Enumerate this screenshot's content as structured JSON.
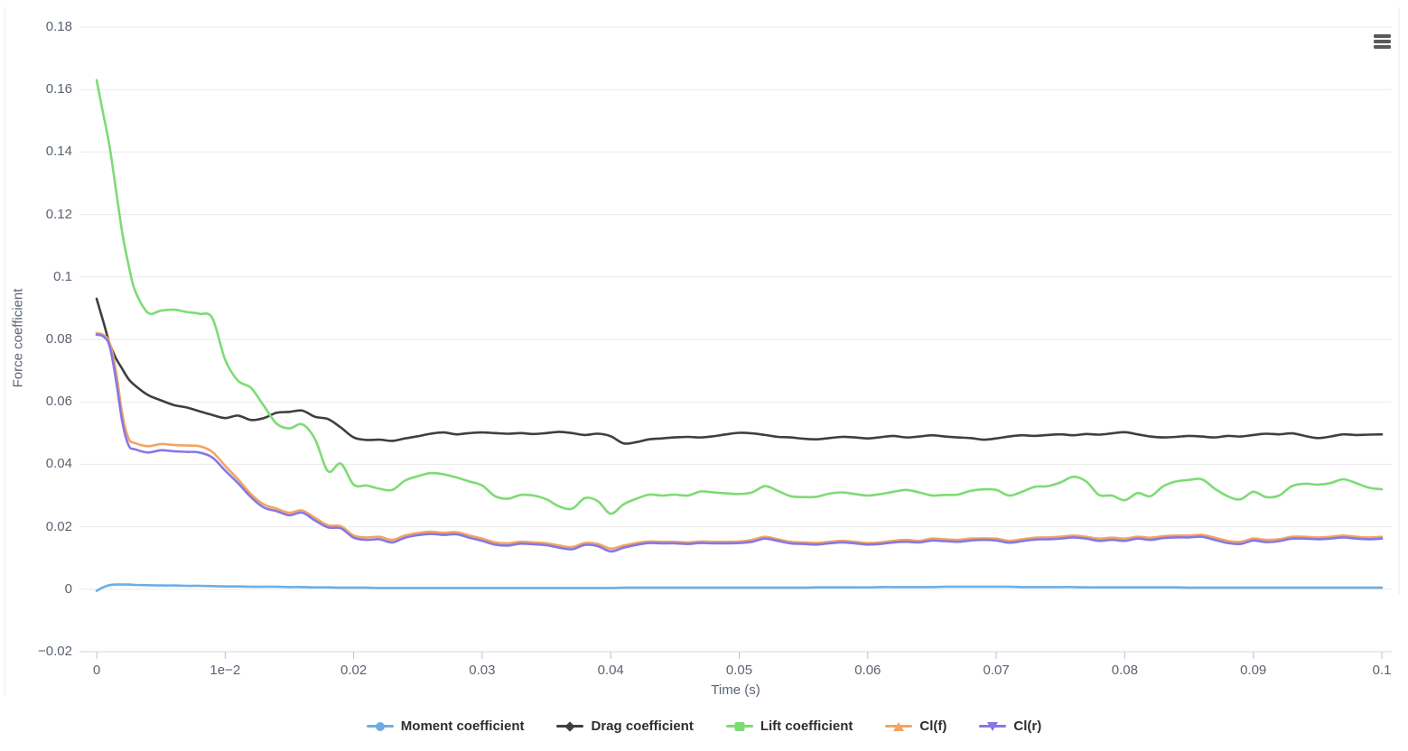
{
  "page": {
    "background": "#ffffff"
  },
  "toolbar": {
    "menu_icon": "hamburger"
  },
  "chart_data": {
    "type": "line",
    "title": "",
    "xlabel": "Time (s)",
    "ylabel": "Force coefficient",
    "xlim": [
      0,
      0.1
    ],
    "ylim": [
      -0.02,
      0.18
    ],
    "grid": true,
    "legend_position": "bottom",
    "colors": {
      "grid": "#eaeaea",
      "axis_line": "#ccd6e4",
      "tick": "#b7c3d6",
      "label_text": "#5a6372",
      "legend_text": "#2e2e2e"
    },
    "x_ticks": [
      {
        "value": 0,
        "label": "0"
      },
      {
        "value": 0.01,
        "label": "1e−2"
      },
      {
        "value": 0.02,
        "label": "0.02"
      },
      {
        "value": 0.03,
        "label": "0.03"
      },
      {
        "value": 0.04,
        "label": "0.04"
      },
      {
        "value": 0.05,
        "label": "0.05"
      },
      {
        "value": 0.06,
        "label": "0.06"
      },
      {
        "value": 0.07,
        "label": "0.07"
      },
      {
        "value": 0.08,
        "label": "0.08"
      },
      {
        "value": 0.09,
        "label": "0.09"
      },
      {
        "value": 0.1,
        "label": "0.1"
      }
    ],
    "y_ticks": [
      {
        "value": 0.18,
        "label": "0.18"
      },
      {
        "value": 0.16,
        "label": "0.16"
      },
      {
        "value": 0.14,
        "label": "0.14"
      },
      {
        "value": 0.12,
        "label": "0.12"
      },
      {
        "value": 0.1,
        "label": "0.1"
      },
      {
        "value": 0.08,
        "label": "0.08"
      },
      {
        "value": 0.06,
        "label": "0.06"
      },
      {
        "value": 0.04,
        "label": "0.04"
      },
      {
        "value": 0.02,
        "label": "0.02"
      },
      {
        "value": 0,
        "label": "0"
      },
      {
        "value": -0.02,
        "label": "−0.02"
      }
    ],
    "x": [
      0,
      0.0005,
      0.001,
      0.0015,
      0.002,
      0.0025,
      0.003,
      0.004,
      0.005,
      0.006,
      0.007,
      0.008,
      0.009,
      0.01,
      0.011,
      0.012,
      0.013,
      0.014,
      0.015,
      0.016,
      0.017,
      0.018,
      0.019,
      0.02,
      0.021,
      0.022,
      0.023,
      0.024,
      0.025,
      0.026,
      0.027,
      0.028,
      0.029,
      0.03,
      0.031,
      0.032,
      0.033,
      0.034,
      0.035,
      0.036,
      0.037,
      0.038,
      0.039,
      0.04,
      0.041,
      0.042,
      0.043,
      0.044,
      0.045,
      0.046,
      0.047,
      0.048,
      0.049,
      0.05,
      0.051,
      0.052,
      0.053,
      0.054,
      0.055,
      0.056,
      0.057,
      0.058,
      0.059,
      0.06,
      0.061,
      0.062,
      0.063,
      0.064,
      0.065,
      0.066,
      0.067,
      0.068,
      0.069,
      0.07,
      0.071,
      0.072,
      0.073,
      0.074,
      0.075,
      0.076,
      0.077,
      0.078,
      0.079,
      0.08,
      0.081,
      0.082,
      0.083,
      0.084,
      0.085,
      0.086,
      0.087,
      0.088,
      0.089,
      0.09,
      0.091,
      0.092,
      0.093,
      0.094,
      0.095,
      0.096,
      0.097,
      0.098,
      0.099,
      0.1
    ],
    "series": [
      {
        "name": "Moment coefficient",
        "color": "#6caee4",
        "marker": "circle",
        "values": [
          -0.0005,
          0.0006,
          0.0013,
          0.0015,
          0.0015,
          0.0015,
          0.0014,
          0.0013,
          0.0012,
          0.0012,
          0.0011,
          0.0011,
          0.001,
          0.0009,
          0.0009,
          0.0008,
          0.0008,
          0.0008,
          0.0007,
          0.0007,
          0.0006,
          0.0006,
          0.0005,
          0.0005,
          0.0005,
          0.0004,
          0.0004,
          0.0004,
          0.0004,
          0.0004,
          0.0004,
          0.0004,
          0.0004,
          0.0004,
          0.0004,
          0.0004,
          0.0004,
          0.0004,
          0.0004,
          0.0004,
          0.0004,
          0.0004,
          0.0004,
          0.0004,
          0.0005,
          0.0005,
          0.0005,
          0.0005,
          0.0005,
          0.0005,
          0.0005,
          0.0005,
          0.0005,
          0.0005,
          0.0005,
          0.0005,
          0.0005,
          0.0005,
          0.0005,
          0.0006,
          0.0006,
          0.0006,
          0.0006,
          0.0006,
          0.0007,
          0.0007,
          0.0007,
          0.0007,
          0.0007,
          0.0008,
          0.0008,
          0.0008,
          0.0008,
          0.0008,
          0.0008,
          0.0007,
          0.0007,
          0.0007,
          0.0007,
          0.0007,
          0.0006,
          0.0006,
          0.0006,
          0.0006,
          0.0006,
          0.0006,
          0.0006,
          0.0006,
          0.0005,
          0.0005,
          0.0005,
          0.0005,
          0.0005,
          0.0005,
          0.0005,
          0.0005,
          0.0005,
          0.0005,
          0.0005,
          0.0005,
          0.0005,
          0.0005,
          0.0005,
          0.0005
        ]
      },
      {
        "name": "Drag coefficient",
        "color": "#3f3f3f",
        "marker": "diamond",
        "values": [
          0.093,
          0.086,
          0.0788,
          0.074,
          0.0705,
          0.0672,
          0.0652,
          0.0622,
          0.0605,
          0.059,
          0.0582,
          0.057,
          0.0558,
          0.0548,
          0.0556,
          0.0542,
          0.0548,
          0.0565,
          0.0568,
          0.0572,
          0.0552,
          0.0545,
          0.0518,
          0.0486,
          0.0478,
          0.0479,
          0.0475,
          0.0483,
          0.049,
          0.0498,
          0.0502,
          0.0496,
          0.05,
          0.0502,
          0.05,
          0.0498,
          0.05,
          0.0497,
          0.05,
          0.0504,
          0.05,
          0.0494,
          0.0498,
          0.049,
          0.0467,
          0.0471,
          0.048,
          0.0483,
          0.0486,
          0.0488,
          0.0486,
          0.049,
          0.0496,
          0.0501,
          0.0499,
          0.0494,
          0.0488,
          0.0486,
          0.0482,
          0.048,
          0.0484,
          0.0488,
          0.0486,
          0.0483,
          0.0487,
          0.0491,
          0.0486,
          0.0489,
          0.0493,
          0.0489,
          0.0486,
          0.0484,
          0.0479,
          0.0483,
          0.0489,
          0.0493,
          0.0491,
          0.0494,
          0.0496,
          0.0493,
          0.0497,
          0.0495,
          0.0499,
          0.0503,
          0.0496,
          0.0489,
          0.0486,
          0.0488,
          0.0491,
          0.0489,
          0.0486,
          0.0491,
          0.0489,
          0.0494,
          0.0498,
          0.0496,
          0.0499,
          0.0491,
          0.0484,
          0.0489,
          0.0496,
          0.0494,
          0.0495,
          0.0496
        ]
      },
      {
        "name": "Lift coefficient",
        "color": "#7edb74",
        "marker": "square",
        "values": [
          0.163,
          0.1525,
          0.142,
          0.128,
          0.114,
          0.1035,
          0.0955,
          0.0885,
          0.0892,
          0.0895,
          0.0888,
          0.0882,
          0.0868,
          0.0735,
          0.0668,
          0.0645,
          0.0588,
          0.053,
          0.0515,
          0.0528,
          0.048,
          0.0378,
          0.0402,
          0.0335,
          0.0332,
          0.0322,
          0.0318,
          0.0348,
          0.0362,
          0.0372,
          0.0368,
          0.0358,
          0.0345,
          0.0332,
          0.0298,
          0.029,
          0.0302,
          0.03,
          0.0288,
          0.0265,
          0.0258,
          0.0292,
          0.0282,
          0.0242,
          0.0272,
          0.029,
          0.0303,
          0.03,
          0.0303,
          0.03,
          0.0313,
          0.031,
          0.0307,
          0.0305,
          0.031,
          0.033,
          0.0315,
          0.0298,
          0.0295,
          0.0296,
          0.0306,
          0.031,
          0.0305,
          0.03,
          0.0305,
          0.0312,
          0.0318,
          0.031,
          0.03,
          0.0302,
          0.0303,
          0.0315,
          0.032,
          0.0318,
          0.03,
          0.0312,
          0.0328,
          0.033,
          0.0342,
          0.036,
          0.0345,
          0.0302,
          0.03,
          0.0285,
          0.0308,
          0.0298,
          0.033,
          0.0345,
          0.035,
          0.0352,
          0.0322,
          0.0298,
          0.0288,
          0.0312,
          0.0295,
          0.03,
          0.033,
          0.0338,
          0.0335,
          0.034,
          0.0352,
          0.034,
          0.0325,
          0.032
        ]
      },
      {
        "name": "Cl(f)",
        "color": "#f4a45f",
        "marker": "triangle-up",
        "values": [
          0.082,
          0.0815,
          0.079,
          0.07,
          0.056,
          0.0482,
          0.0468,
          0.0458,
          0.0465,
          0.0462,
          0.046,
          0.0458,
          0.044,
          0.0395,
          0.0352,
          0.0305,
          0.0272,
          0.0258,
          0.0245,
          0.0252,
          0.0228,
          0.0205,
          0.0202,
          0.0172,
          0.0166,
          0.0168,
          0.0158,
          0.0172,
          0.018,
          0.0184,
          0.0181,
          0.0183,
          0.0172,
          0.0162,
          0.015,
          0.0147,
          0.0152,
          0.015,
          0.0147,
          0.014,
          0.0135,
          0.0148,
          0.0145,
          0.013,
          0.014,
          0.0148,
          0.0153,
          0.0152,
          0.0152,
          0.015,
          0.0153,
          0.0152,
          0.0152,
          0.0153,
          0.0158,
          0.0168,
          0.016,
          0.0152,
          0.015,
          0.0148,
          0.0152,
          0.0155,
          0.0152,
          0.0148,
          0.015,
          0.0155,
          0.0158,
          0.0155,
          0.0162,
          0.016,
          0.0158,
          0.0162,
          0.0163,
          0.0162,
          0.0155,
          0.016,
          0.0165,
          0.0166,
          0.0168,
          0.0172,
          0.0168,
          0.0162,
          0.0165,
          0.0162,
          0.0168,
          0.0165,
          0.017,
          0.0172,
          0.0172,
          0.0174,
          0.0165,
          0.0155,
          0.0152,
          0.0162,
          0.0158,
          0.016,
          0.0168,
          0.0168,
          0.0166,
          0.0168,
          0.0172,
          0.0168,
          0.0166,
          0.0168
        ]
      },
      {
        "name": "Cl(r)",
        "color": "#8478e6",
        "marker": "triangle-down",
        "values": [
          0.0815,
          0.081,
          0.078,
          0.0672,
          0.0535,
          0.046,
          0.0448,
          0.0438,
          0.0445,
          0.0442,
          0.044,
          0.0438,
          0.0422,
          0.038,
          0.034,
          0.0295,
          0.0262,
          0.025,
          0.0237,
          0.0245,
          0.022,
          0.0198,
          0.0195,
          0.0165,
          0.0158,
          0.016,
          0.015,
          0.0165,
          0.0173,
          0.0177,
          0.0174,
          0.0176,
          0.0165,
          0.0155,
          0.0143,
          0.014,
          0.0146,
          0.0144,
          0.0141,
          0.0133,
          0.0128,
          0.0142,
          0.0138,
          0.0121,
          0.0133,
          0.0142,
          0.0148,
          0.0147,
          0.0147,
          0.0145,
          0.0148,
          0.0147,
          0.0147,
          0.0148,
          0.0152,
          0.0162,
          0.0155,
          0.0147,
          0.0145,
          0.0143,
          0.0147,
          0.015,
          0.0147,
          0.0143,
          0.0145,
          0.015,
          0.0152,
          0.015,
          0.0156,
          0.0154,
          0.0152,
          0.0156,
          0.0158,
          0.0156,
          0.0149,
          0.0154,
          0.0159,
          0.016,
          0.0162,
          0.0166,
          0.0162,
          0.0155,
          0.0158,
          0.0155,
          0.0162,
          0.0158,
          0.0164,
          0.0166,
          0.0166,
          0.0168,
          0.0158,
          0.0148,
          0.0145,
          0.0156,
          0.0151,
          0.0154,
          0.0162,
          0.0162,
          0.016,
          0.0162,
          0.0166,
          0.0162,
          0.016,
          0.0162
        ]
      }
    ]
  }
}
